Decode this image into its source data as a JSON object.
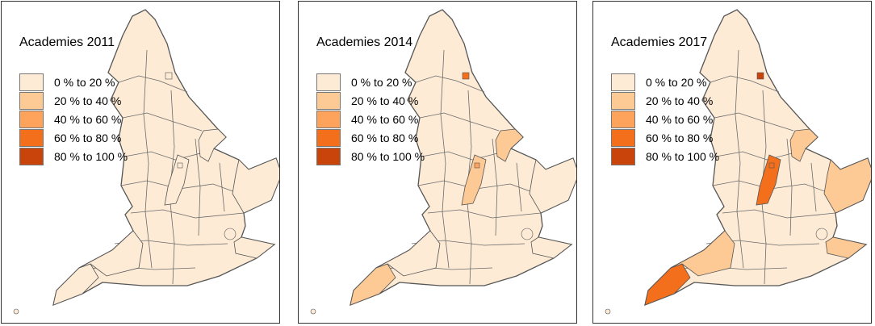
{
  "legend": {
    "classes": [
      {
        "label": "0 % to 20 %",
        "color": "#fdebd6"
      },
      {
        "label": "20 % to 40 %",
        "color": "#fdc995"
      },
      {
        "label": "40 % to 60 %",
        "color": "#fda35c"
      },
      {
        "label": "60 % to 80 %",
        "color": "#f46f1c"
      },
      {
        "label": "80 % to 100 %",
        "color": "#c8440b"
      }
    ]
  },
  "panels": [
    {
      "title": "Academies 2011",
      "year": 2011
    },
    {
      "title": "Academies 2014",
      "year": 2014
    },
    {
      "title": "Academies 2017",
      "year": 2017
    }
  ],
  "region_fill_class_index": {
    "2011": {
      "cornwall": 0,
      "south_west": 0,
      "midlands_spine": 0,
      "lincolnshire": 0,
      "east": 0,
      "kent": 0,
      "small_north_east_unit": 0,
      "small_midlands_unit": 0
    },
    "2014": {
      "cornwall": 1,
      "south_west": 0,
      "midlands_spine": 1,
      "lincolnshire": 1,
      "east": 0,
      "kent": 0,
      "small_north_east_unit": 3,
      "small_midlands_unit": 2
    },
    "2017": {
      "cornwall": 3,
      "south_west": 1,
      "midlands_spine": 3,
      "lincolnshire": 1,
      "east": 1,
      "kent": 1,
      "small_north_east_unit": 4,
      "small_midlands_unit": 3
    }
  }
}
